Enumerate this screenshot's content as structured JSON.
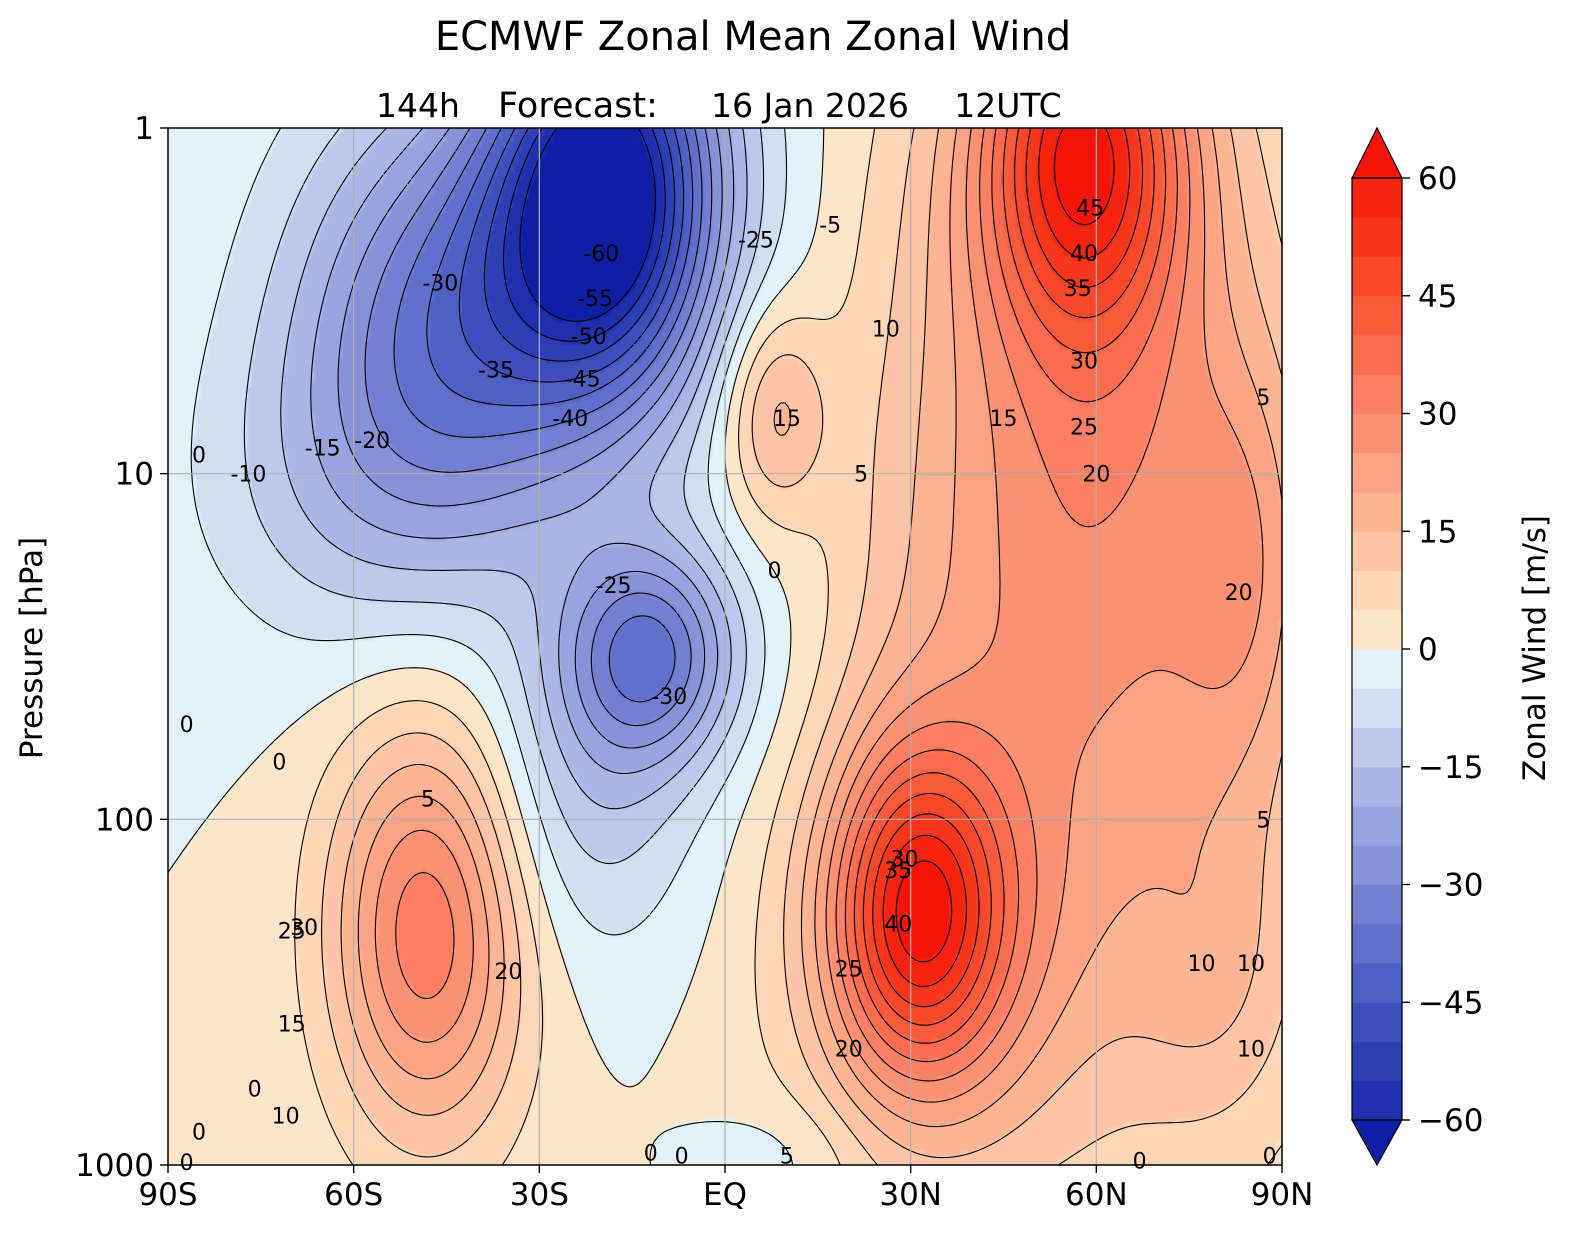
{
  "chart_data": {
    "type": "heatmap",
    "title": "ECMWF Zonal Mean Zonal Wind",
    "subtitle": {
      "lead": "144h",
      "label": "Forecast:",
      "date": "16 Jan 2026",
      "time": "12UTC"
    },
    "xlabel": "",
    "ylabel": "Pressure [hPa]",
    "x_scale": "linear",
    "y_scale": "log-inverted",
    "xlim": [
      -90,
      90
    ],
    "ylim": [
      1000,
      1
    ],
    "x_ticks": [
      {
        "value": -90,
        "label": "90S"
      },
      {
        "value": -60,
        "label": "60S"
      },
      {
        "value": -30,
        "label": "30S"
      },
      {
        "value": 0,
        "label": "EQ"
      },
      {
        "value": 30,
        "label": "30N"
      },
      {
        "value": 60,
        "label": "60N"
      },
      {
        "value": 90,
        "label": "90N"
      }
    ],
    "y_ticks": [
      {
        "value": 1,
        "label": "1"
      },
      {
        "value": 10,
        "label": "10"
      },
      {
        "value": 100,
        "label": "100"
      },
      {
        "value": 1000,
        "label": "1000"
      }
    ],
    "grid": true,
    "colorbar": {
      "label": "Zonal Wind [m/s]",
      "range": [
        -60,
        60
      ],
      "step": 5,
      "extend": "both",
      "ticks": [
        {
          "value": 60,
          "label": "60"
        },
        {
          "value": 45,
          "label": "45"
        },
        {
          "value": 30,
          "label": "30"
        },
        {
          "value": 15,
          "label": "15"
        },
        {
          "value": 0,
          "label": "0"
        },
        {
          "value": -15,
          "label": "−15"
        },
        {
          "value": -30,
          "label": "−30"
        },
        {
          "value": -45,
          "label": "−45"
        },
        {
          "value": -60,
          "label": "−60"
        }
      ],
      "neg_colors": [
        "#e2f2f9",
        "#d0e0f1",
        "#bcc9ec",
        "#aab6e6",
        "#98a4df",
        "#8792d8",
        "#7380d2",
        "#6070cc",
        "#4f60c5",
        "#3e4fbd",
        "#2d3fb5",
        "#1f2fad",
        "#0f1fa5"
      ],
      "pos_colors": [
        "#fde5c8",
        "#fdd6b7",
        "#fdc5a5",
        "#fcb493",
        "#fca384",
        "#fb9173",
        "#fa7f63",
        "#fa6c4e",
        "#f95a3a",
        "#f84829",
        "#f7361b",
        "#f6230f",
        "#f4140a"
      ]
    },
    "features": [
      {
        "name": "stratospheric easterly jet",
        "lat": -18,
        "p": 1.7,
        "peak": -62
      },
      {
        "name": "stratospheric westerly jet",
        "lat": 58,
        "p": 1.3,
        "peak": 48
      },
      {
        "name": "southern subtropical jet",
        "lat": -48,
        "p": 200,
        "peak": 33
      },
      {
        "name": "northern subtropical jet",
        "lat": 31,
        "p": 180,
        "peak": 43
      },
      {
        "name": "secondary easterly maximum",
        "lat": -15,
        "p": 32,
        "peak": -32
      },
      {
        "name": "tropical westerly cell",
        "lat": 8,
        "p": 7,
        "peak": 17
      }
    ],
    "contour_labels": [
      {
        "text": "-60",
        "lat": -20,
        "p": 2.3
      },
      {
        "text": "-55",
        "lat": -21,
        "p": 3.1
      },
      {
        "text": "-50",
        "lat": -22,
        "p": 4.0
      },
      {
        "text": "-45",
        "lat": -23,
        "p": 5.3
      },
      {
        "text": "-40",
        "lat": -25,
        "p": 6.9
      },
      {
        "text": "-35",
        "lat": -37,
        "p": 5.0
      },
      {
        "text": "-30",
        "lat": -46,
        "p": 2.8
      },
      {
        "text": "-25",
        "lat": 5,
        "p": 2.1
      },
      {
        "text": "-5",
        "lat": 17,
        "p": 1.9
      },
      {
        "text": "-20",
        "lat": -57,
        "p": 8.0
      },
      {
        "text": "-15",
        "lat": -65,
        "p": 8.4
      },
      {
        "text": "-10",
        "lat": -77,
        "p": 10.0
      },
      {
        "text": "-25",
        "lat": -18,
        "p": 21.0
      },
      {
        "text": "-30",
        "lat": -9,
        "p": 44.0
      },
      {
        "text": "0",
        "lat": -85,
        "p": 8.8
      },
      {
        "text": "0",
        "lat": -87,
        "p": 53.0
      },
      {
        "text": "0",
        "lat": -72,
        "p": 68.0
      },
      {
        "text": "0",
        "lat": 8,
        "p": 19.0
      },
      {
        "text": "5",
        "lat": -48,
        "p": 87.0
      },
      {
        "text": "5",
        "lat": 22,
        "p": 10.0
      },
      {
        "text": "10",
        "lat": 26,
        "p": 3.8
      },
      {
        "text": "15",
        "lat": 10,
        "p": 6.9
      },
      {
        "text": "15",
        "lat": 45,
        "p": 6.9
      },
      {
        "text": "20",
        "lat": 60,
        "p": 10.0
      },
      {
        "text": "25",
        "lat": 58,
        "p": 7.3
      },
      {
        "text": "30",
        "lat": 58,
        "p": 4.7
      },
      {
        "text": "35",
        "lat": 57,
        "p": 2.9
      },
      {
        "text": "40",
        "lat": 58,
        "p": 2.3
      },
      {
        "text": "45",
        "lat": 59,
        "p": 1.7
      },
      {
        "text": "20",
        "lat": 83,
        "p": 22.0
      },
      {
        "text": "5",
        "lat": 87,
        "p": 6.0
      },
      {
        "text": "5",
        "lat": 87,
        "p": 100.0
      },
      {
        "text": "10",
        "lat": 77,
        "p": 260.0
      },
      {
        "text": "10",
        "lat": 85,
        "p": 260.0
      },
      {
        "text": "10",
        "lat": 85,
        "p": 460.0
      },
      {
        "text": "25",
        "lat": -70,
        "p": 210.0
      },
      {
        "text": "30",
        "lat": -68,
        "p": 205.0
      },
      {
        "text": "20",
        "lat": -35,
        "p": 275.0
      },
      {
        "text": "15",
        "lat": -70,
        "p": 390.0
      },
      {
        "text": "10",
        "lat": -71,
        "p": 720.0
      },
      {
        "text": "0",
        "lat": -76,
        "p": 600.0
      },
      {
        "text": "30",
        "lat": 29,
        "p": 130.0
      },
      {
        "text": "35",
        "lat": 28,
        "p": 140.0
      },
      {
        "text": "40",
        "lat": 28,
        "p": 200.0
      },
      {
        "text": "25",
        "lat": 20,
        "p": 270.0
      },
      {
        "text": "20",
        "lat": 20,
        "p": 460.0
      },
      {
        "text": "0",
        "lat": -12,
        "p": 920.0
      },
      {
        "text": "0",
        "lat": -7,
        "p": 940.0
      },
      {
        "text": "5",
        "lat": 10,
        "p": 940.0
      },
      {
        "text": "0",
        "lat": 67,
        "p": 970.0
      },
      {
        "text": "0",
        "lat": 88,
        "p": 940.0
      },
      {
        "text": "0",
        "lat": -85,
        "p": 800.0
      },
      {
        "text": "0",
        "lat": -87,
        "p": 980.0
      }
    ]
  }
}
